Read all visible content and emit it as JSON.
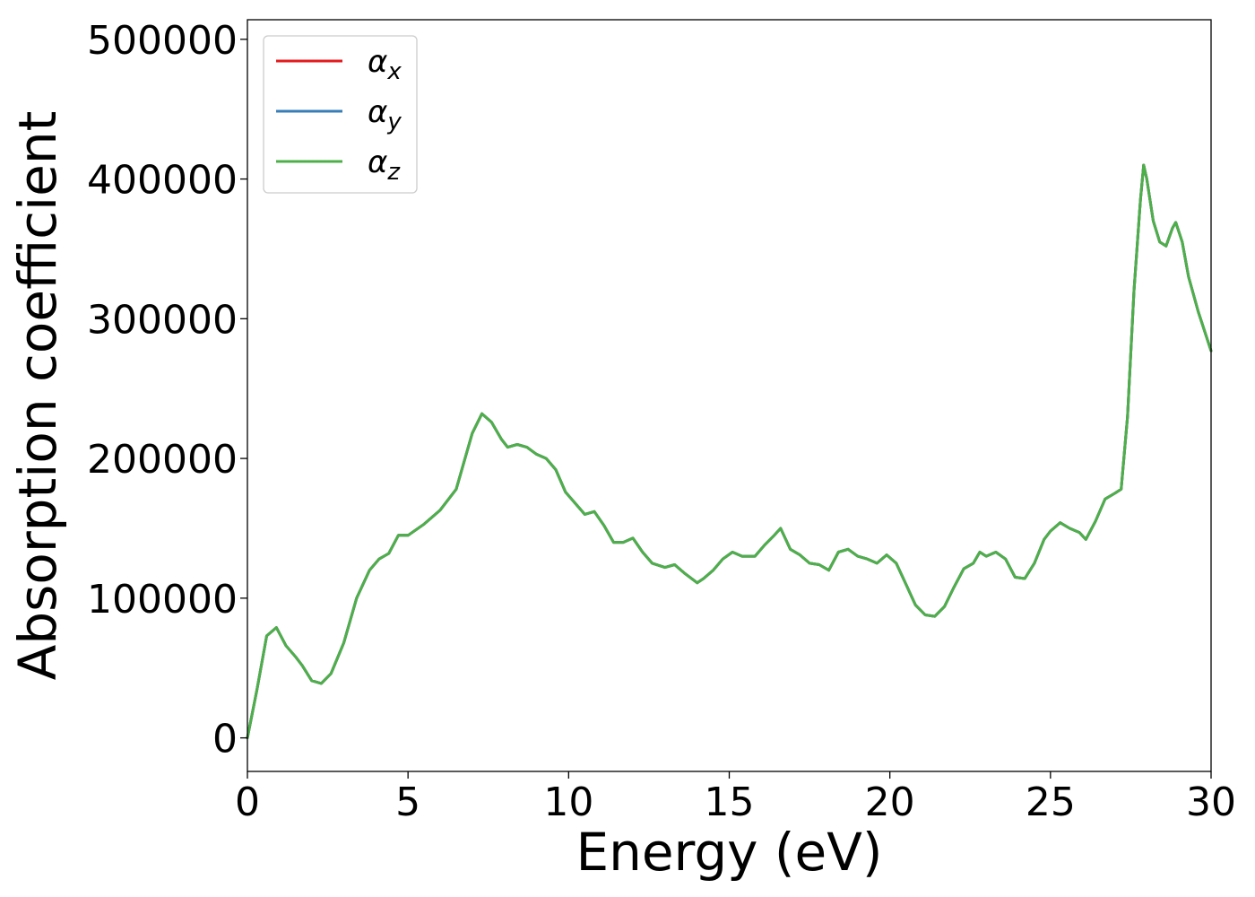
{
  "chart_data": {
    "type": "line",
    "title": "",
    "xlabel": "Energy (eV)",
    "ylabel": "Absorption coefficient",
    "xlim": [
      0,
      30
    ],
    "ylim": [
      -24000,
      514000
    ],
    "x_ticks": [
      0,
      5,
      10,
      15,
      20,
      25,
      30
    ],
    "x_tick_labels": [
      "0",
      "5",
      "10",
      "15",
      "20",
      "25",
      "30"
    ],
    "y_ticks": [
      0,
      100000,
      200000,
      300000,
      400000,
      500000
    ],
    "y_tick_labels": [
      "0",
      "100000",
      "200000",
      "300000",
      "400000",
      "500000"
    ],
    "grid": false,
    "legend_position": "top-left",
    "legend": [
      {
        "sym": "α",
        "sub": "x",
        "color": "#e41a1c"
      },
      {
        "sym": "α",
        "sub": "y",
        "color": "#377eb8"
      },
      {
        "sym": "α",
        "sub": "z",
        "color": "#4daf4a"
      }
    ],
    "x": [
      0,
      0.3,
      0.6,
      0.9,
      1.2,
      1.5,
      1.7,
      2.0,
      2.3,
      2.6,
      3.0,
      3.4,
      3.8,
      4.1,
      4.4,
      4.7,
      5.0,
      5.5,
      6.0,
      6.5,
      7.0,
      7.3,
      7.6,
      7.9,
      8.1,
      8.4,
      8.7,
      9.0,
      9.3,
      9.6,
      9.9,
      10.2,
      10.5,
      10.8,
      11.1,
      11.4,
      11.7,
      12.0,
      12.3,
      12.6,
      13.0,
      13.3,
      13.6,
      14.0,
      14.2,
      14.5,
      14.8,
      15.1,
      15.4,
      15.8,
      16.1,
      16.4,
      16.6,
      16.9,
      17.2,
      17.5,
      17.8,
      18.1,
      18.4,
      18.7,
      19.0,
      19.3,
      19.6,
      19.9,
      20.2,
      20.5,
      20.8,
      21.1,
      21.4,
      21.7,
      22.0,
      22.3,
      22.6,
      22.8,
      23.0,
      23.3,
      23.6,
      23.9,
      24.2,
      24.5,
      24.8,
      25.0,
      25.3,
      25.6,
      25.9,
      26.1,
      26.4,
      26.7,
      27.0,
      27.2,
      27.4,
      27.6,
      27.8,
      27.9,
      28.0,
      28.2,
      28.4,
      28.6,
      28.8,
      28.9,
      29.1,
      29.3,
      29.6,
      30.0
    ],
    "series": [
      {
        "color": "#e41a1c",
        "values": [
          0,
          35000,
          73000,
          79000,
          66000,
          58000,
          52000,
          41000,
          39000,
          46000,
          68000,
          100000,
          120000,
          128000,
          132000,
          145000,
          145000,
          153000,
          163000,
          178000,
          218000,
          232000,
          226000,
          214000,
          208000,
          210000,
          208000,
          203000,
          200000,
          192000,
          176000,
          168000,
          160000,
          162000,
          152000,
          140000,
          140000,
          143000,
          133000,
          125000,
          122000,
          124000,
          118000,
          111000,
          114000,
          120000,
          128000,
          133000,
          130000,
          130000,
          138000,
          145000,
          150000,
          135000,
          131000,
          125000,
          124000,
          120000,
          133000,
          135000,
          130000,
          128000,
          125000,
          131000,
          125000,
          110000,
          95000,
          88000,
          87000,
          94000,
          108000,
          121000,
          125000,
          133000,
          130000,
          133000,
          128000,
          115000,
          114000,
          125000,
          142000,
          148000,
          154000,
          150000,
          147000,
          142000,
          155000,
          171000,
          175000,
          178000,
          230000,
          320000,
          385000,
          410000,
          400000,
          370000,
          355000,
          352000,
          365000,
          369000,
          355000,
          330000,
          305000,
          277000
        ]
      },
      {
        "color": "#377eb8",
        "values": [
          0,
          35000,
          73000,
          79000,
          66000,
          58000,
          52000,
          41000,
          39000,
          46000,
          68000,
          100000,
          120000,
          128000,
          132000,
          145000,
          145000,
          153000,
          163000,
          178000,
          218000,
          232000,
          226000,
          214000,
          208000,
          210000,
          208000,
          203000,
          200000,
          192000,
          176000,
          168000,
          160000,
          162000,
          152000,
          140000,
          140000,
          143000,
          133000,
          125000,
          122000,
          124000,
          118000,
          111000,
          114000,
          120000,
          128000,
          133000,
          130000,
          130000,
          138000,
          145000,
          150000,
          135000,
          131000,
          125000,
          124000,
          120000,
          133000,
          135000,
          130000,
          128000,
          125000,
          131000,
          125000,
          110000,
          95000,
          88000,
          87000,
          94000,
          108000,
          121000,
          125000,
          133000,
          130000,
          133000,
          128000,
          115000,
          114000,
          125000,
          142000,
          148000,
          154000,
          150000,
          147000,
          142000,
          155000,
          171000,
          175000,
          178000,
          230000,
          320000,
          385000,
          410000,
          400000,
          370000,
          355000,
          352000,
          365000,
          369000,
          355000,
          330000,
          305000,
          277000
        ]
      },
      {
        "color": "#4daf4a",
        "values": [
          0,
          35000,
          73000,
          79000,
          66000,
          58000,
          52000,
          41000,
          39000,
          46000,
          68000,
          100000,
          120000,
          128000,
          132000,
          145000,
          145000,
          153000,
          163000,
          178000,
          218000,
          232000,
          226000,
          214000,
          208000,
          210000,
          208000,
          203000,
          200000,
          192000,
          176000,
          168000,
          160000,
          162000,
          152000,
          140000,
          140000,
          143000,
          133000,
          125000,
          122000,
          124000,
          118000,
          111000,
          114000,
          120000,
          128000,
          133000,
          130000,
          130000,
          138000,
          145000,
          150000,
          135000,
          131000,
          125000,
          124000,
          120000,
          133000,
          135000,
          130000,
          128000,
          125000,
          131000,
          125000,
          110000,
          95000,
          88000,
          87000,
          94000,
          108000,
          121000,
          125000,
          133000,
          130000,
          133000,
          128000,
          115000,
          114000,
          125000,
          142000,
          148000,
          154000,
          150000,
          147000,
          142000,
          155000,
          171000,
          175000,
          178000,
          230000,
          320000,
          385000,
          410000,
          400000,
          370000,
          355000,
          352000,
          365000,
          369000,
          355000,
          330000,
          305000,
          277000
        ]
      }
    ]
  }
}
